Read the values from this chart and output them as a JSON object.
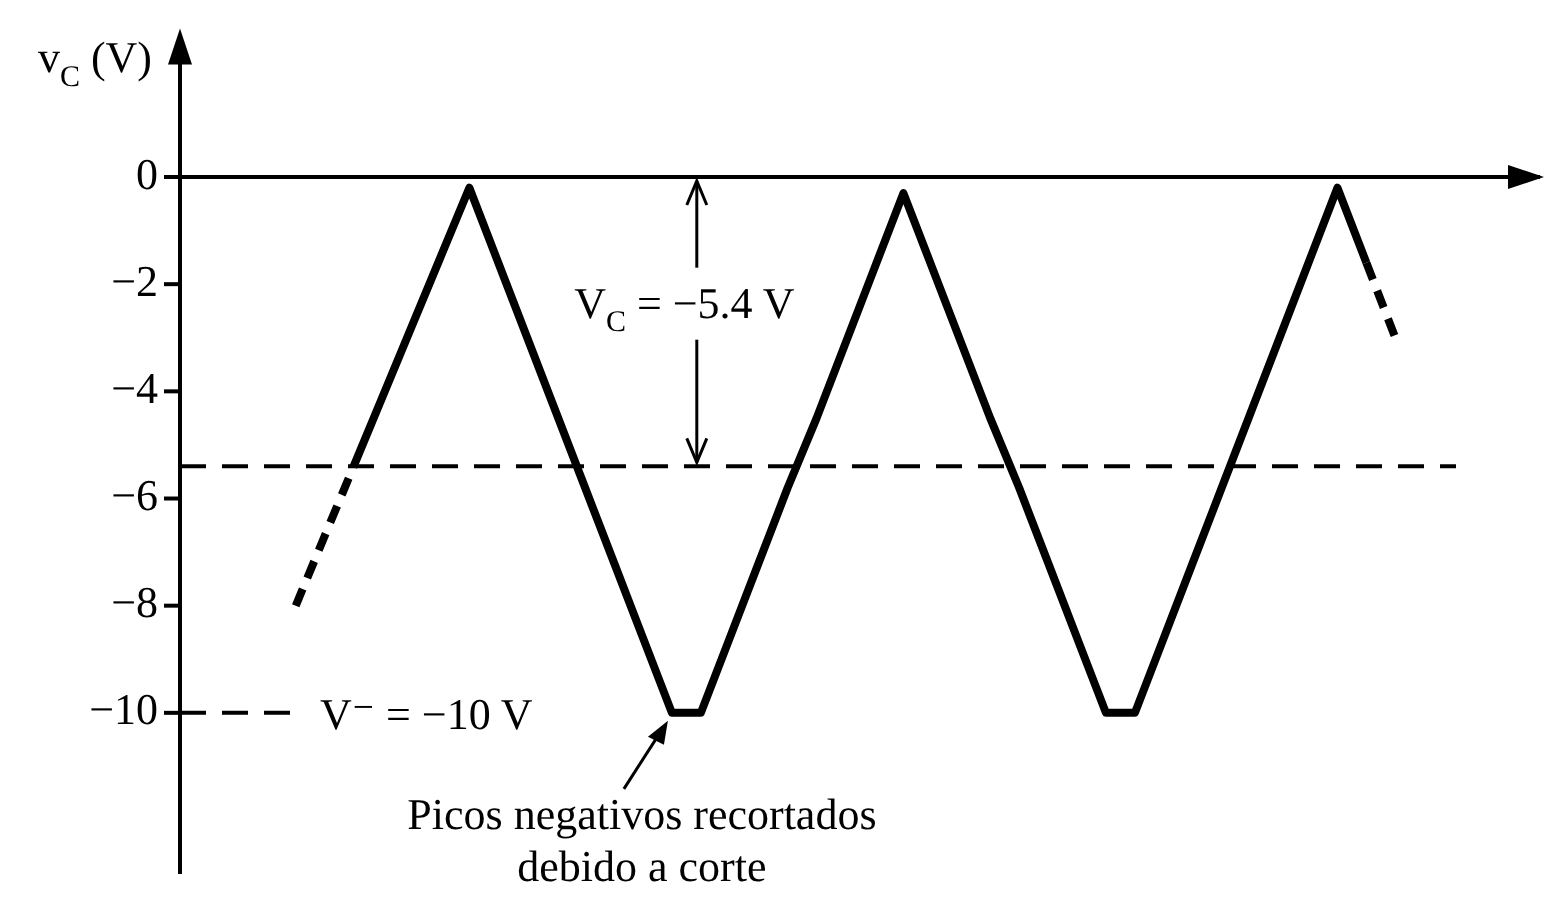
{
  "chart_data": {
    "type": "line",
    "ylabel": "v$_{C}$ (V)",
    "categories": [
      null,
      null,
      null,
      null,
      null,
      null,
      null,
      null,
      null,
      null,
      null,
      null,
      null,
      null,
      null,
      null,
      null,
      null,
      null,
      null,
      null,
      null,
      null,
      null,
      null,
      null,
      null,
      null,
      null,
      null,
      null,
      null,
      null,
      null,
      null,
      null,
      null,
      null,
      null,
      null,
      null,
      null,
      null,
      null,
      null,
      null,
      null,
      null
    ],
    "series": [
      {
        "color": "#000000",
        "line_style": "dashed",
        "values": [
          null,
          null,
          null,
          null,
          -8,
          -6.7,
          -5.4,
          null,
          null,
          null,
          null,
          null,
          null,
          null,
          null,
          null,
          null,
          null,
          null,
          null,
          null,
          null,
          null,
          null,
          null,
          null,
          null,
          null,
          null,
          null,
          null,
          null,
          null,
          null,
          null,
          null,
          null,
          null,
          null,
          null,
          null,
          null,
          null,
          null,
          null,
          null,
          null,
          null
        ]
      },
      {
        "color": "#000000",
        "line_style": "solid",
        "values": [
          null,
          null,
          null,
          null,
          null,
          null,
          -5.4,
          -4.1,
          -2.8,
          -1.5,
          -0.2,
          -1.6,
          -3.0,
          -4.4,
          -5.8,
          -7.2,
          -8.6,
          -10,
          -10,
          -8.6,
          -7.2,
          -5.8,
          -4.5,
          -3.1,
          -1.7,
          -0.3,
          -1.7,
          -3.1,
          -4.5,
          -5.8,
          -7.2,
          -8.6,
          -10,
          -10,
          -8.6,
          -7.2,
          -5.8,
          -4.4,
          -3.0,
          -1.6,
          -0.2,
          -1.6,
          null,
          null,
          null,
          null,
          null,
          null
        ]
      },
      {
        "color": "#000000",
        "line_style": "dashed",
        "values": [
          null,
          null,
          null,
          null,
          null,
          null,
          null,
          null,
          null,
          null,
          null,
          null,
          null,
          null,
          null,
          null,
          null,
          null,
          null,
          null,
          null,
          null,
          null,
          null,
          null,
          null,
          null,
          null,
          null,
          null,
          null,
          null,
          null,
          null,
          null,
          null,
          null,
          null,
          null,
          null,
          null,
          -1.6,
          -3.0,
          null,
          null,
          null,
          null,
          null
        ]
      }
    ],
    "ylim": [
      -13,
      2.4
    ],
    "yticks": [
      -10,
      -8,
      -6,
      -4,
      -2,
      0
    ],
    "ref_lines": [
      {
        "axis": "y",
        "value": -5.4,
        "line_style": "dashed",
        "color": "#000000"
      },
      {
        "axis": "y",
        "value": -10,
        "label": "V⁻ = −10 V",
        "line_style": "dashed",
        "color": "#000000"
      }
    ],
    "annotations": [
      "V$_{C}$ = −5.4 V",
      "Picos negativos recortados debido a corte"
    ],
    "legend": false,
    "marker": "none",
    "tick_labels": "y"
  }
}
